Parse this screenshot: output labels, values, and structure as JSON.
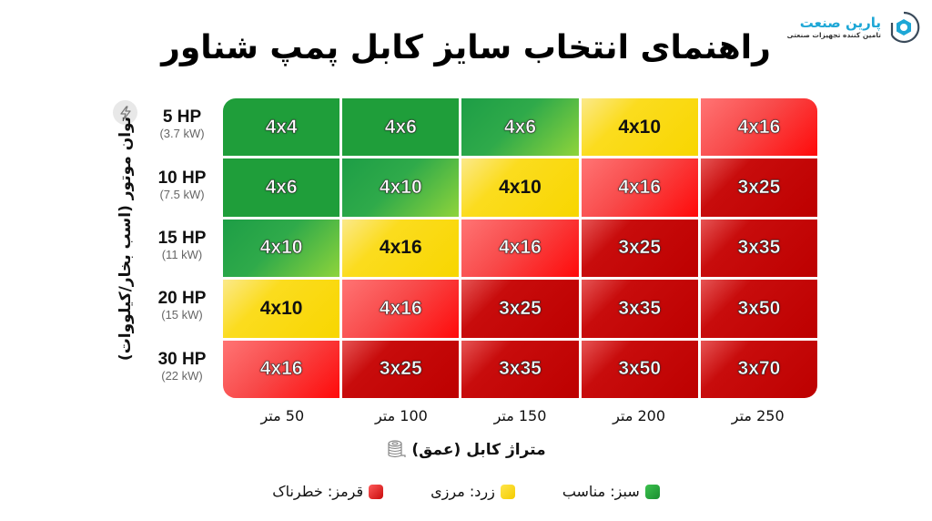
{
  "logo": {
    "name": "پارین صنعت",
    "tagline": "تامین کننده تجهیزات صنعتی",
    "color": "#1ea7d6"
  },
  "title": "راهنمای انتخاب سایز کابل پمپ شناور",
  "y_axis": {
    "title": "توان موتور (اسب بخار/کیلووات)",
    "icon": "lightning-icon"
  },
  "x_axis": {
    "title": "متراژ کابل (عمق)",
    "icon": "cable-spool-icon"
  },
  "rows": [
    {
      "hp": "5 HP",
      "kw": "(3.7 kW)"
    },
    {
      "hp": "10 HP",
      "kw": "(7.5 kW)"
    },
    {
      "hp": "15 HP",
      "kw": "(11 kW)"
    },
    {
      "hp": "20 HP",
      "kw": "(15 kW)"
    },
    {
      "hp": "30 HP",
      "kw": "(22 kW)"
    }
  ],
  "columns": [
    "50 متر",
    "100 متر",
    "150 متر",
    "200 متر",
    "250 متر"
  ],
  "cells": [
    [
      {
        "v": "4x4",
        "c": "g1"
      },
      {
        "v": "4x6",
        "c": "g1"
      },
      {
        "v": "4x6",
        "c": "g2"
      },
      {
        "v": "4x10",
        "c": "y1"
      },
      {
        "v": "4x16",
        "c": "r1"
      }
    ],
    [
      {
        "v": "4x6",
        "c": "g1"
      },
      {
        "v": "4x10",
        "c": "g2"
      },
      {
        "v": "4x10",
        "c": "y1"
      },
      {
        "v": "4x16",
        "c": "r1"
      },
      {
        "v": "3x25",
        "c": "r2"
      }
    ],
    [
      {
        "v": "4x10",
        "c": "g2"
      },
      {
        "v": "4x16",
        "c": "y1"
      },
      {
        "v": "4x16",
        "c": "r1"
      },
      {
        "v": "3x25",
        "c": "r2"
      },
      {
        "v": "3x35",
        "c": "r2"
      }
    ],
    [
      {
        "v": "4x10",
        "c": "y1"
      },
      {
        "v": "4x16",
        "c": "r1"
      },
      {
        "v": "3x25",
        "c": "r2"
      },
      {
        "v": "3x35",
        "c": "r2"
      },
      {
        "v": "3x50",
        "c": "r2"
      }
    ],
    [
      {
        "v": "4x16",
        "c": "r1"
      },
      {
        "v": "3x25",
        "c": "r2"
      },
      {
        "v": "3x35",
        "c": "r2"
      },
      {
        "v": "3x50",
        "c": "r2"
      },
      {
        "v": "3x70",
        "c": "r2"
      }
    ]
  ],
  "legend": [
    {
      "label": "سبز: مناسب",
      "color": "#1f9e3a"
    },
    {
      "label": "زرد: مرزی",
      "color": "#f8d600"
    },
    {
      "label": "قرمز: خطرناک",
      "color": "#e01010"
    }
  ],
  "chart_data": {
    "type": "heatmap",
    "title": "راهنمای انتخاب سایز کابل پمپ شناور",
    "xlabel": "متراژ کابل (عمق)",
    "ylabel": "توان موتور (اسب بخار/کیلووات)",
    "x": [
      "50 متر",
      "100 متر",
      "150 متر",
      "200 متر",
      "250 متر"
    ],
    "y": [
      "5 HP (3.7 kW)",
      "10 HP (7.5 kW)",
      "15 HP (11 kW)",
      "20 HP (15 kW)",
      "30 HP (22 kW)"
    ],
    "values": [
      [
        "4x4",
        "4x6",
        "4x6",
        "4x10",
        "4x16"
      ],
      [
        "4x6",
        "4x10",
        "4x10",
        "4x16",
        "3x25"
      ],
      [
        "4x10",
        "4x16",
        "4x16",
        "3x25",
        "3x35"
      ],
      [
        "4x10",
        "4x16",
        "3x25",
        "3x35",
        "3x50"
      ],
      [
        "4x16",
        "3x25",
        "3x35",
        "3x50",
        "3x70"
      ]
    ],
    "status": [
      [
        "green",
        "green",
        "green",
        "yellow",
        "red"
      ],
      [
        "green",
        "green",
        "yellow",
        "red",
        "red"
      ],
      [
        "green",
        "yellow",
        "red",
        "red",
        "red"
      ],
      [
        "yellow",
        "red",
        "red",
        "red",
        "red"
      ],
      [
        "red",
        "red",
        "red",
        "red",
        "red"
      ]
    ],
    "legend": [
      {
        "label": "سبز: مناسب",
        "color": "green"
      },
      {
        "label": "زرد: مرزی",
        "color": "yellow"
      },
      {
        "label": "قرمز: خطرناک",
        "color": "red"
      }
    ],
    "legend_position": "bottom",
    "grid": true
  }
}
